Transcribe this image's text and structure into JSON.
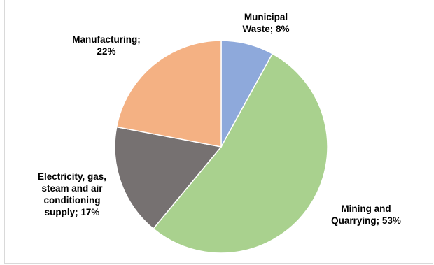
{
  "chart_data": {
    "type": "pie",
    "slices": [
      {
        "label_lines": [
          "Municipal",
          "Waste; 8%"
        ],
        "value": 8,
        "color": "#8EA9DB"
      },
      {
        "label_lines": [
          "Mining and",
          "Quarrying; 53%"
        ],
        "value": 53,
        "color": "#A9D18E"
      },
      {
        "label_lines": [
          "Electricity, gas,",
          "steam and air",
          "conditioning",
          "supply; 17%"
        ],
        "value": 17,
        "color": "#767171"
      },
      {
        "label_lines": [
          "Manufacturing;",
          "22%"
        ],
        "value": 22,
        "color": "#F4B183"
      }
    ]
  }
}
